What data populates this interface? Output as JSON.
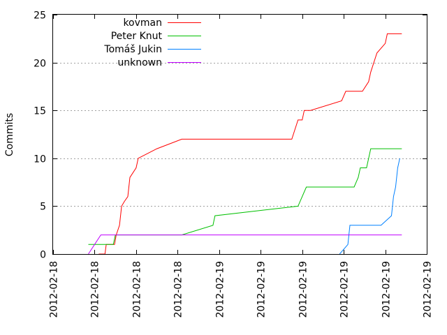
{
  "chart_data": {
    "type": "line",
    "title": "",
    "xlabel": "",
    "ylabel": "Commits",
    "ylim": [
      0,
      25
    ],
    "xlim": [
      0,
      9
    ],
    "yticks": [
      0,
      5,
      10,
      15,
      20,
      25
    ],
    "xticks": [
      {
        "x": 0,
        "label": "2012-02-18"
      },
      {
        "x": 1,
        "label": "2012-02-18"
      },
      {
        "x": 2,
        "label": "2012-02-18"
      },
      {
        "x": 3,
        "label": "2012-02-18"
      },
      {
        "x": 4,
        "label": "2012-02-19"
      },
      {
        "x": 5,
        "label": "2012-02-19"
      },
      {
        "x": 6,
        "label": "2012-02-19"
      },
      {
        "x": 7,
        "label": "2012-02-19"
      },
      {
        "x": 8,
        "label": "2012-02-19"
      },
      {
        "x": 9,
        "label": "2012-02-19"
      }
    ],
    "grid": "horizontal",
    "legend_position": "top-left",
    "series": [
      {
        "name": "kovman",
        "color": "#ff0000",
        "points": [
          [
            1.1,
            0
          ],
          [
            1.25,
            0
          ],
          [
            1.28,
            1
          ],
          [
            1.48,
            1
          ],
          [
            1.52,
            2
          ],
          [
            1.6,
            3
          ],
          [
            1.65,
            5
          ],
          [
            1.72,
            5.5
          ],
          [
            1.8,
            6
          ],
          [
            1.85,
            8
          ],
          [
            2.0,
            9
          ],
          [
            2.05,
            10
          ],
          [
            2.5,
            11
          ],
          [
            3.1,
            12
          ],
          [
            5.75,
            12
          ],
          [
            5.9,
            14
          ],
          [
            6.0,
            14
          ],
          [
            6.05,
            15
          ],
          [
            6.2,
            15
          ],
          [
            6.95,
            16
          ],
          [
            7.05,
            17
          ],
          [
            7.45,
            17
          ],
          [
            7.6,
            18
          ],
          [
            7.65,
            19
          ],
          [
            7.8,
            21
          ],
          [
            8.0,
            22
          ],
          [
            8.05,
            23
          ],
          [
            8.4,
            23
          ]
        ]
      },
      {
        "name": "Peter Knut",
        "color": "#00c000",
        "points": [
          [
            0.85,
            1
          ],
          [
            1.45,
            1
          ],
          [
            1.5,
            2
          ],
          [
            3.1,
            2
          ],
          [
            3.85,
            3
          ],
          [
            3.9,
            4
          ],
          [
            5.9,
            5
          ],
          [
            6.1,
            7
          ],
          [
            7.25,
            7
          ],
          [
            7.35,
            8
          ],
          [
            7.4,
            9
          ],
          [
            7.55,
            9
          ],
          [
            7.65,
            11
          ],
          [
            8.4,
            11
          ]
        ]
      },
      {
        "name": "Tomáš Jukin",
        "color": "#0080ff",
        "points": [
          [
            6.9,
            0
          ],
          [
            7.1,
            1
          ],
          [
            7.15,
            3
          ],
          [
            7.9,
            3
          ],
          [
            8.15,
            4
          ],
          [
            8.2,
            6
          ],
          [
            8.25,
            7
          ],
          [
            8.3,
            9
          ],
          [
            8.35,
            10
          ]
        ]
      },
      {
        "name": "unknown",
        "color": "#c000ff",
        "points": [
          [
            0.85,
            0
          ],
          [
            1.0,
            1
          ],
          [
            1.15,
            2
          ],
          [
            8.4,
            2
          ]
        ]
      }
    ]
  }
}
